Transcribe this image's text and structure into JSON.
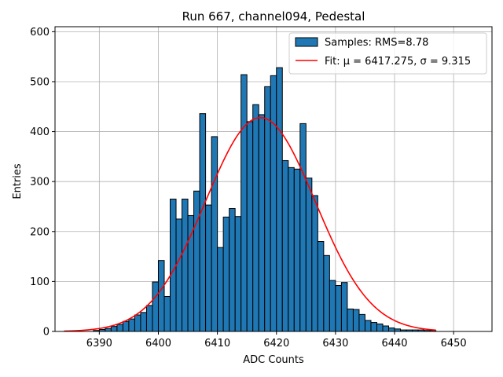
{
  "chart_data": {
    "type": "bar",
    "title": "Run 667, channel094, Pedestal",
    "xlabel": "ADC Counts",
    "ylabel": "Entries",
    "xlim": [
      6382.5,
      6456.5
    ],
    "ylim": [
      0,
      610
    ],
    "xticks": [
      6390,
      6400,
      6410,
      6420,
      6430,
      6440,
      6450
    ],
    "yticks": [
      0,
      100,
      200,
      300,
      400,
      500,
      600
    ],
    "grid": true,
    "legend_position": "top-right",
    "bin_width": 1,
    "histogram": {
      "name": "Samples: RMS=8.78",
      "color": "#1f77b4",
      "edgecolor": "#000000",
      "bin_left_edges": [
        6389,
        6390,
        6391,
        6392,
        6393,
        6394,
        6395,
        6396,
        6397,
        6398,
        6399,
        6400,
        6401,
        6402,
        6403,
        6404,
        6405,
        6406,
        6407,
        6408,
        6409,
        6410,
        6411,
        6412,
        6413,
        6414,
        6415,
        6416,
        6417,
        6418,
        6419,
        6420,
        6421,
        6422,
        6423,
        6424,
        6425,
        6426,
        6427,
        6428,
        6429,
        6430,
        6431,
        6432,
        6433,
        6434,
        6435,
        6436,
        6437,
        6438,
        6439,
        6440,
        6441,
        6442,
        6443,
        6444,
        6445,
        6446
      ],
      "counts": [
        2,
        4,
        6,
        10,
        14,
        20,
        25,
        33,
        38,
        52,
        99,
        142,
        70,
        265,
        225,
        265,
        232,
        281,
        436,
        253,
        390,
        168,
        229,
        246,
        230,
        514,
        420,
        454,
        434,
        490,
        512,
        528,
        342,
        328,
        325,
        416,
        307,
        272,
        180,
        152,
        102,
        92,
        98,
        45,
        44,
        34,
        22,
        18,
        15,
        11,
        7,
        5,
        3,
        3,
        3,
        3,
        2,
        2
      ]
    },
    "fit": {
      "name": "Fit: μ = 6417.275, σ = 9.315",
      "mu": 6417.275,
      "sigma": 9.315,
      "amplitude": 428,
      "x_range": [
        6384,
        6447
      ],
      "color": "#ff0000"
    }
  }
}
